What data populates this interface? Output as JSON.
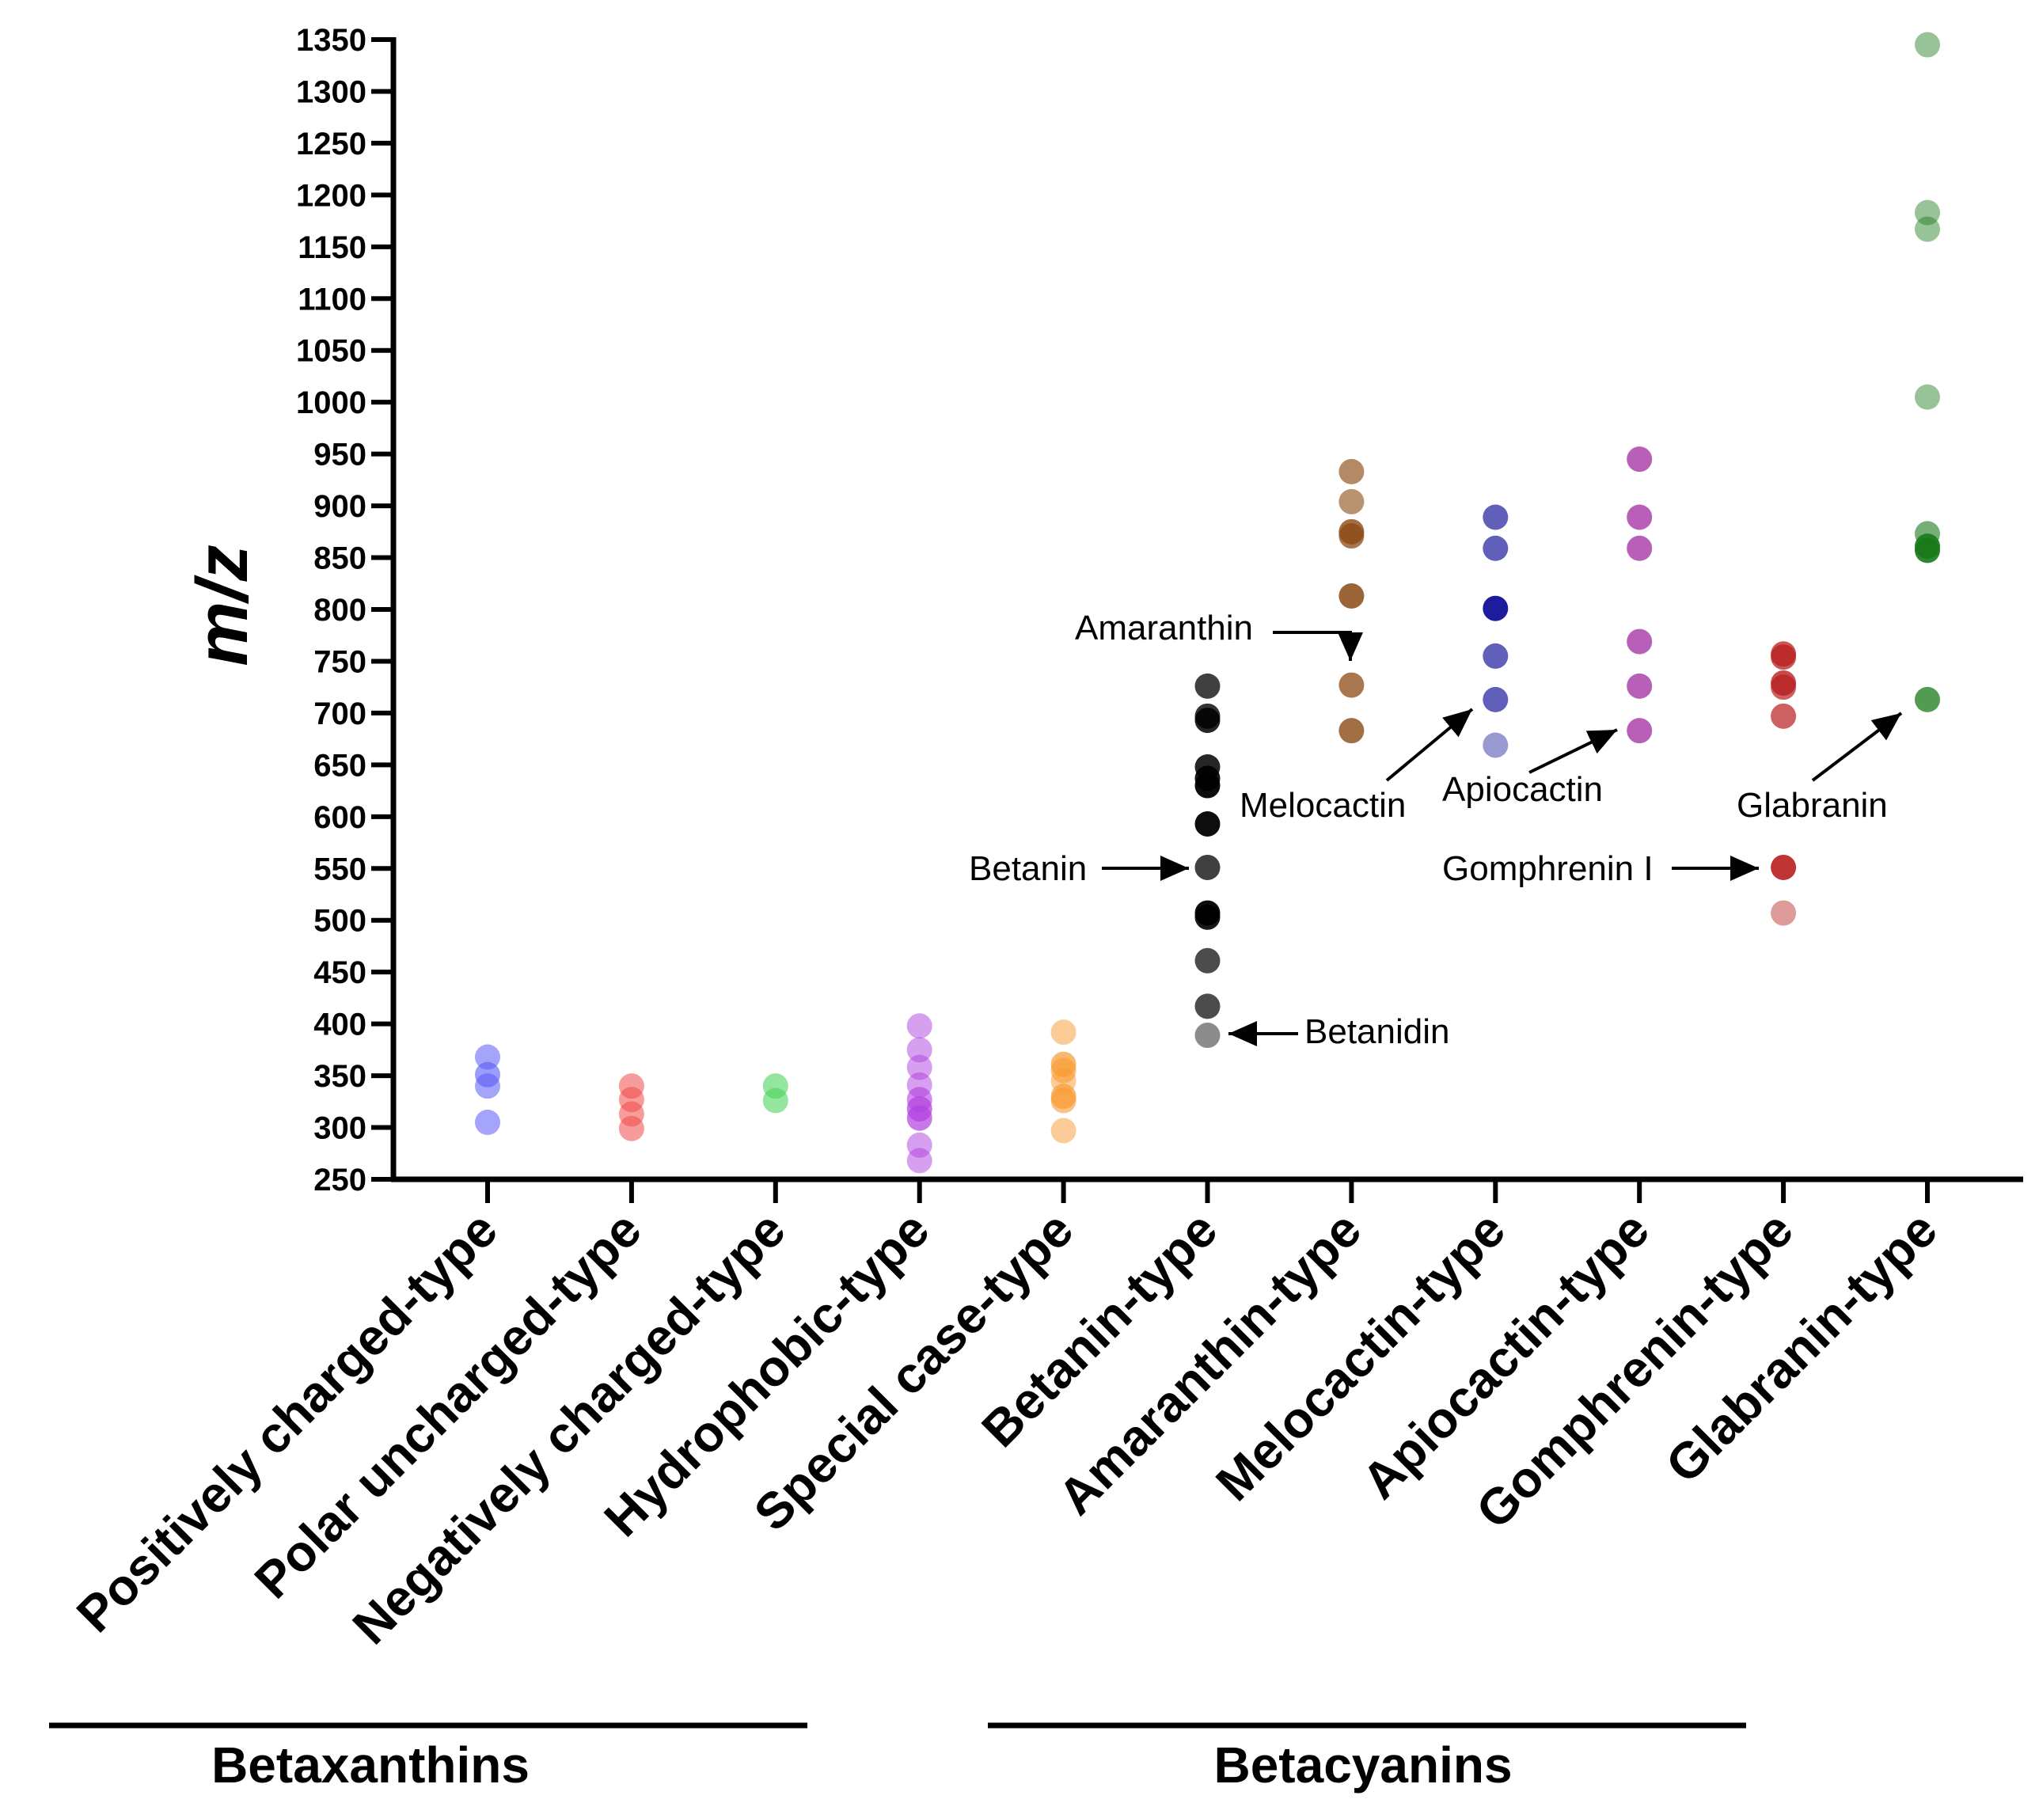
{
  "chart_data": {
    "type": "scatter",
    "ylabel": "m/z",
    "ylim": [
      250,
      1350
    ],
    "yticks": [
      250,
      300,
      350,
      400,
      450,
      500,
      550,
      600,
      650,
      700,
      750,
      800,
      850,
      900,
      950,
      1000,
      1050,
      1100,
      1150,
      1200,
      1250,
      1300,
      1350
    ],
    "categories": [
      "Positively charged-type",
      "Polar uncharged-type",
      "Negatively charged-type",
      "Hydrophobic-type",
      "Special case-type",
      "Betanin-type",
      "Amaranthin-type",
      "Melocactin-type",
      "Apiocactin-type",
      "Gomphrenin-type",
      "Glabranin-type"
    ],
    "series": [
      {
        "name": "Positively charged-type",
        "color": "#5a5af5",
        "points": [
          {
            "y": 368,
            "a": 0.55
          },
          {
            "y": 351,
            "a": 0.6
          },
          {
            "y": 340,
            "a": 0.55
          },
          {
            "y": 305,
            "a": 0.55
          }
        ]
      },
      {
        "name": "Polar uncharged-type",
        "color": "#f04848",
        "points": [
          {
            "y": 340,
            "a": 0.55
          },
          {
            "y": 327,
            "a": 0.55
          },
          {
            "y": 313,
            "a": 0.55
          },
          {
            "y": 299,
            "a": 0.55
          }
        ]
      },
      {
        "name": "Negatively charged-type",
        "color": "#4cd45c",
        "points": [
          {
            "y": 340,
            "a": 0.6
          },
          {
            "y": 326,
            "a": 0.6
          }
        ]
      },
      {
        "name": "Hydrophobic-type",
        "color": "#b040e0",
        "points": [
          {
            "y": 398,
            "a": 0.5
          },
          {
            "y": 375,
            "a": 0.5
          },
          {
            "y": 358,
            "a": 0.5
          },
          {
            "y": 341,
            "a": 0.5
          },
          {
            "y": 327,
            "a": 0.6
          },
          {
            "y": 318,
            "a": 0.7
          },
          {
            "y": 309,
            "a": 0.7
          },
          {
            "y": 283,
            "a": 0.5
          },
          {
            "y": 268,
            "a": 0.5
          }
        ]
      },
      {
        "name": "Special case-type",
        "color": "#f89a30",
        "points": [
          {
            "y": 392,
            "a": 0.5
          },
          {
            "y": 361,
            "a": 0.7
          },
          {
            "y": 355,
            "a": 0.6
          },
          {
            "y": 345,
            "a": 0.5
          },
          {
            "y": 330,
            "a": 0.7
          },
          {
            "y": 326,
            "a": 0.6
          },
          {
            "y": 297,
            "a": 0.5
          }
        ]
      },
      {
        "name": "Betanin-type",
        "color": "#000000",
        "points": [
          {
            "y": 726,
            "a": 0.75
          },
          {
            "y": 697,
            "a": 0.8
          },
          {
            "y": 693,
            "a": 0.85
          },
          {
            "y": 648,
            "a": 0.85
          },
          {
            "y": 637,
            "a": 0.9
          },
          {
            "y": 630,
            "a": 0.95
          },
          {
            "y": 593,
            "a": 0.95
          },
          {
            "y": 551,
            "a": 0.75
          },
          {
            "y": 507,
            "a": 0.95
          },
          {
            "y": 503,
            "a": 0.9
          },
          {
            "y": 461,
            "a": 0.7
          },
          {
            "y": 417,
            "a": 0.7
          },
          {
            "y": 389,
            "a": 0.45
          }
        ]
      },
      {
        "name": "Amaranthin-type",
        "color": "#8b4a14",
        "points": [
          {
            "y": 933,
            "a": 0.65
          },
          {
            "y": 904,
            "a": 0.6
          },
          {
            "y": 875,
            "a": 0.8
          },
          {
            "y": 871,
            "a": 0.75
          },
          {
            "y": 813,
            "a": 0.85
          },
          {
            "y": 727,
            "a": 0.75
          },
          {
            "y": 683,
            "a": 0.8
          }
        ]
      },
      {
        "name": "Melocactin-type",
        "color": "#1c1c9c",
        "points": [
          {
            "y": 889,
            "a": 0.7
          },
          {
            "y": 859,
            "a": 0.7
          },
          {
            "y": 801,
            "a": 1.0
          },
          {
            "y": 755,
            "a": 0.7
          },
          {
            "y": 713,
            "a": 0.7
          },
          {
            "y": 669,
            "a": 0.45
          }
        ]
      },
      {
        "name": "Apiocactin-type",
        "color": "#a02aa0",
        "points": [
          {
            "y": 945,
            "a": 0.75
          },
          {
            "y": 889,
            "a": 0.75
          },
          {
            "y": 859,
            "a": 0.75
          },
          {
            "y": 769,
            "a": 0.75
          },
          {
            "y": 726,
            "a": 0.75
          },
          {
            "y": 683,
            "a": 0.75
          }
        ]
      },
      {
        "name": "Gomphrenin-type",
        "color": "#b81e1e",
        "points": [
          {
            "y": 757,
            "a": 0.75
          },
          {
            "y": 754,
            "a": 0.75
          },
          {
            "y": 729,
            "a": 0.8
          },
          {
            "y": 725,
            "a": 0.7
          },
          {
            "y": 697,
            "a": 0.7
          },
          {
            "y": 551,
            "a": 0.9
          },
          {
            "y": 507,
            "a": 0.45
          }
        ]
      },
      {
        "name": "Glabranin-type",
        "color": "#1a7a1a",
        "points": [
          {
            "y": 1345,
            "a": 0.45
          },
          {
            "y": 1183,
            "a": 0.45
          },
          {
            "y": 1167,
            "a": 0.45
          },
          {
            "y": 1005,
            "a": 0.45
          },
          {
            "y": 873,
            "a": 0.6
          },
          {
            "y": 861,
            "a": 0.9
          },
          {
            "y": 857,
            "a": 0.9
          },
          {
            "y": 713,
            "a": 0.75
          }
        ]
      }
    ],
    "annotations": [
      {
        "label": "Amaranthin",
        "category": "Amaranthin-type",
        "y": 727
      },
      {
        "label": "Melocactin",
        "category": "Melocactin-type",
        "y": 713
      },
      {
        "label": "Apiocactin",
        "category": "Apiocactin-type",
        "y": 683
      },
      {
        "label": "Glabranin",
        "category": "Glabranin-type",
        "y": 713
      },
      {
        "label": "Betanin",
        "category": "Betanin-type",
        "y": 551
      },
      {
        "label": "Gomphrenin I",
        "category": "Gomphrenin-type",
        "y": 551
      },
      {
        "label": "Betanidin",
        "category": "Betanin-type",
        "y": 389
      }
    ],
    "groups": [
      {
        "label": "Betaxanthins",
        "from": "Positively charged-type",
        "to": "Negatively charged-type"
      },
      {
        "label": "Betacyanins",
        "from": "Betanin-type",
        "to": "Gomphrenin-type"
      }
    ]
  }
}
